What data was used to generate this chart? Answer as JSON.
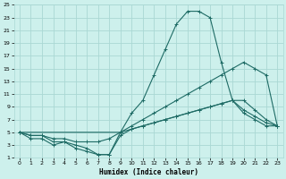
{
  "xlabel": "Humidex (Indice chaleur)",
  "bg_color": "#cdf0ec",
  "grid_color": "#aad8d4",
  "line_color": "#1e6b65",
  "xlim": [
    -0.5,
    23.5
  ],
  "ylim": [
    1,
    25
  ],
  "xticks": [
    0,
    1,
    2,
    3,
    4,
    5,
    6,
    7,
    8,
    9,
    10,
    11,
    12,
    13,
    14,
    15,
    16,
    17,
    18,
    19,
    20,
    21,
    22,
    23
  ],
  "yticks": [
    1,
    3,
    5,
    7,
    9,
    11,
    13,
    15,
    17,
    19,
    21,
    23,
    25
  ],
  "line1_x": [
    0,
    1,
    2,
    3,
    4,
    5,
    6,
    7,
    8,
    9,
    10,
    11,
    12,
    13,
    14,
    15,
    16,
    17,
    18,
    19,
    20,
    21,
    22,
    23
  ],
  "line1_y": [
    5,
    4,
    4,
    3,
    3.5,
    2.5,
    2,
    1.5,
    1.5,
    5,
    8,
    10,
    14,
    18,
    22,
    24,
    24,
    23,
    16,
    10,
    8,
    7,
    6,
    6
  ],
  "line2_x": [
    0,
    1,
    2,
    3,
    4,
    5,
    6,
    7,
    8,
    9,
    10,
    11,
    12,
    13,
    14,
    15,
    16,
    17,
    18,
    19,
    20,
    21,
    22,
    23
  ],
  "line2_y": [
    5,
    4.5,
    4.5,
    4,
    4,
    3.5,
    3.5,
    3.5,
    4,
    5,
    6,
    7,
    8,
    9,
    10,
    11,
    12,
    13,
    14,
    15,
    16,
    15,
    14,
    6
  ],
  "line3_x": [
    0,
    9,
    10,
    11,
    12,
    13,
    14,
    15,
    16,
    17,
    18,
    19,
    20,
    21,
    22,
    23
  ],
  "line3_y": [
    5,
    5,
    5.5,
    6,
    6.5,
    7,
    7.5,
    8,
    8.5,
    9,
    9.5,
    10,
    10,
    8.5,
    7,
    6
  ],
  "line4_x": [
    0,
    1,
    2,
    3,
    4,
    5,
    6,
    7,
    8,
    9,
    10,
    11,
    12,
    13,
    14,
    15,
    16,
    17,
    18,
    19,
    20,
    21,
    22,
    23
  ],
  "line4_y": [
    5,
    4.5,
    4.5,
    3.5,
    3.5,
    3,
    2.5,
    1.5,
    1.5,
    4.5,
    5.5,
    6,
    6.5,
    7,
    7.5,
    8,
    8.5,
    9,
    9.5,
    10,
    8.5,
    7.5,
    6.5,
    6
  ]
}
